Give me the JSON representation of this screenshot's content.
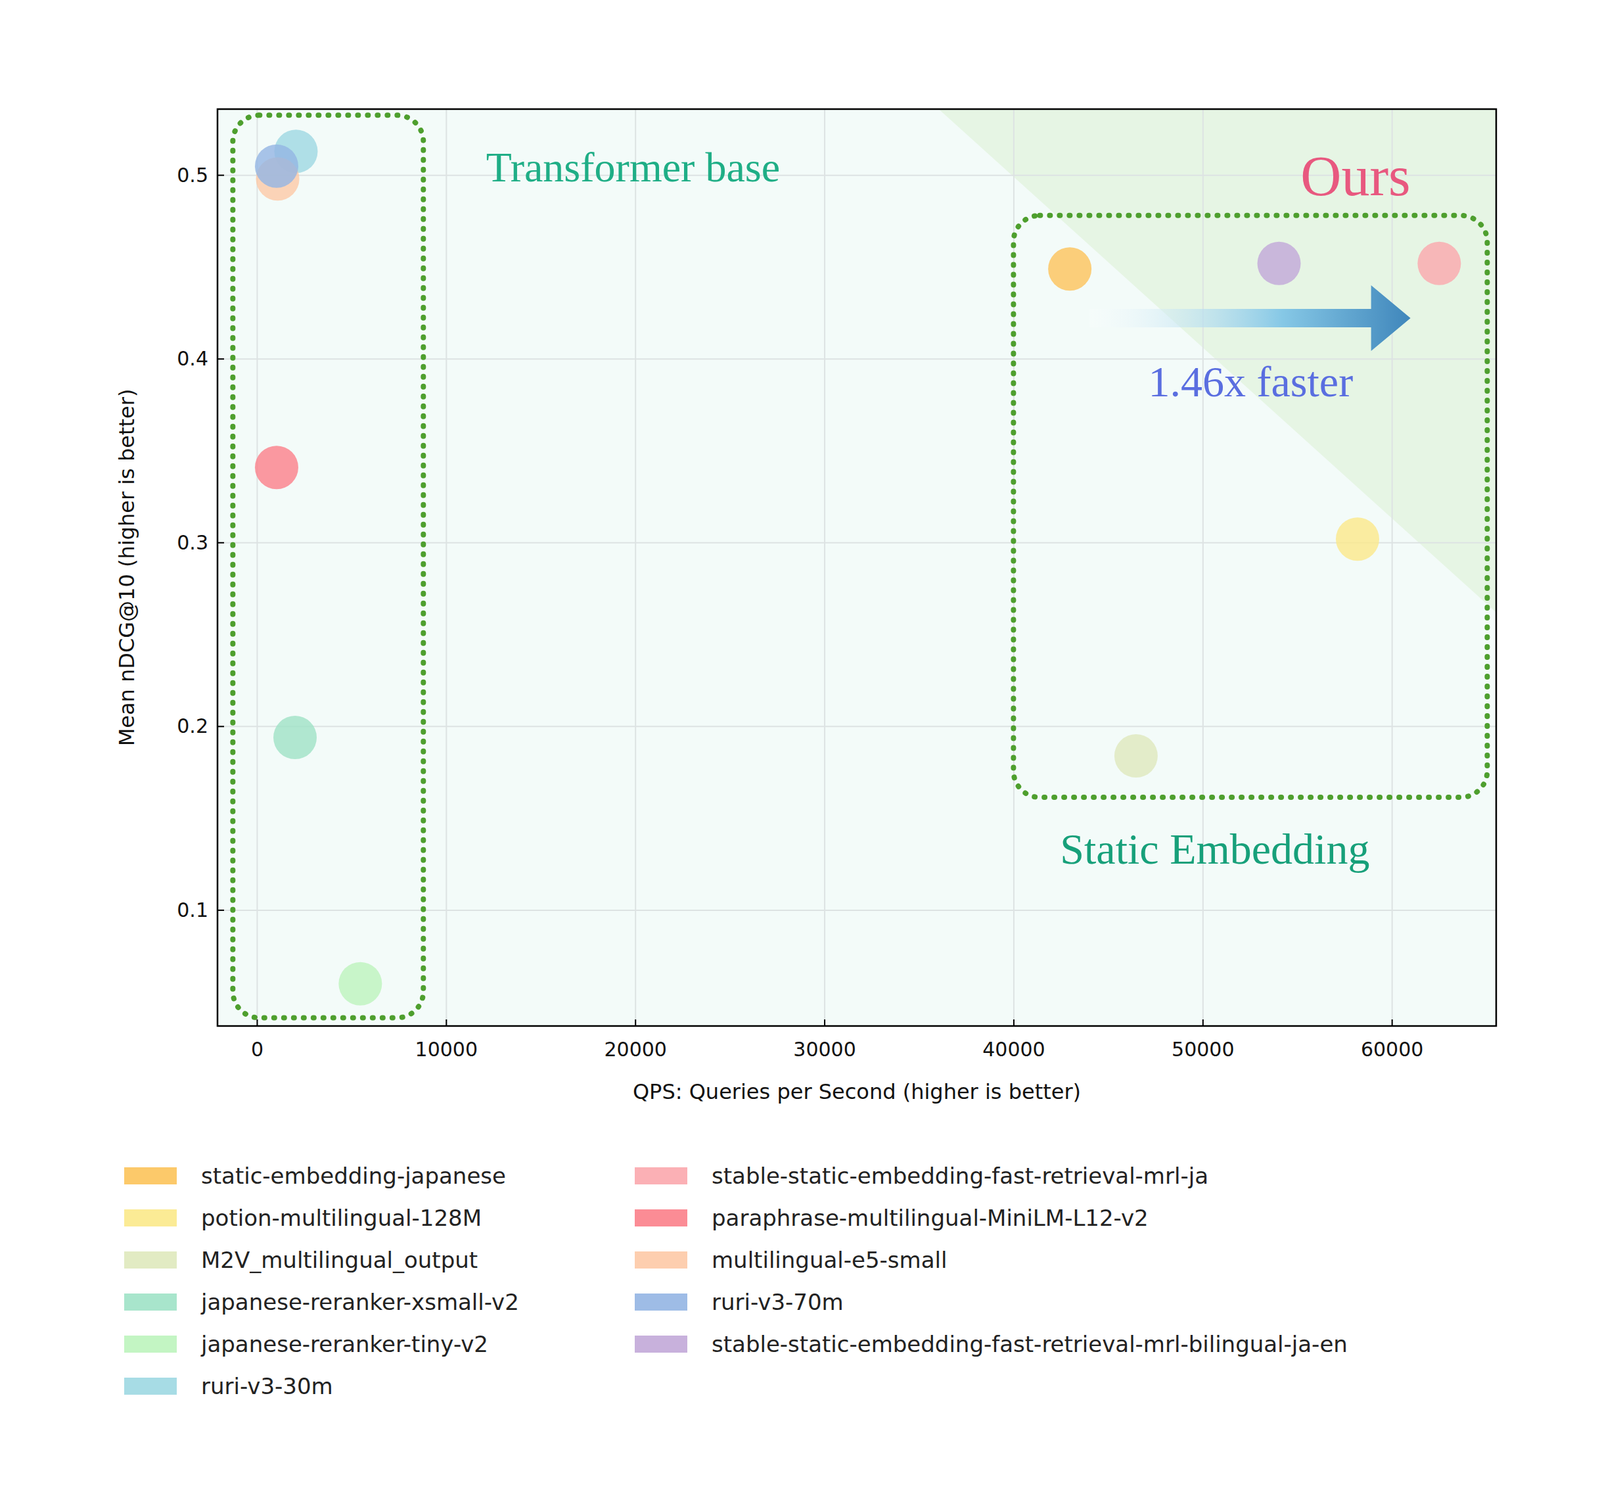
{
  "chart_data": {
    "type": "scatter",
    "x_label": "QPS: Queries per Second (higher is better)",
    "y_label": "Mean nDCG@10 (higher is better)",
    "xlim": [
      -2100,
      65500
    ],
    "ylim": [
      0.037,
      0.536
    ],
    "xticks": [
      0,
      10000,
      20000,
      30000,
      40000,
      50000,
      60000
    ],
    "yticks": [
      0.1,
      0.2,
      0.3,
      0.4,
      0.5
    ],
    "grid": true,
    "legend": "bottom",
    "marker": "circle",
    "series": [
      {
        "name": "static-embedding-japanese",
        "color": "#fcc35a",
        "x": [
          42960
        ],
        "values": [
          0.449
        ]
      },
      {
        "name": "potion-multilingual-128M",
        "color": "#fbe98a",
        "x": [
          58170
        ],
        "values": [
          0.302
        ]
      },
      {
        "name": "M2V_multilingual_output",
        "color": "#dfe9bd",
        "x": [
          46460
        ],
        "values": [
          0.184
        ]
      },
      {
        "name": "japanese-reranker-xsmall-v2",
        "color": "#9fe2c6",
        "x": [
          2000
        ],
        "values": [
          0.194
        ]
      },
      {
        "name": "japanese-reranker-tiny-v2",
        "color": "#bdf4bd",
        "x": [
          5450
        ],
        "values": [
          0.06
        ]
      },
      {
        "name": "ruri-v3-30m",
        "color": "#9dd8e2",
        "x": [
          2050
        ],
        "values": [
          0.513
        ]
      },
      {
        "name": "stable-static-embedding-fast-retrieval-mrl-ja",
        "color": "#fba7ad",
        "x": [
          62490
        ],
        "values": [
          0.452
        ]
      },
      {
        "name": "paraphrase-multilingual-MiniLM-L12-v2",
        "color": "#fb7f8a",
        "x": [
          1025
        ],
        "values": [
          0.341
        ]
      },
      {
        "name": "multilingual-e5-small",
        "color": "#fdc9a6",
        "x": [
          1080
        ],
        "values": [
          0.498
        ]
      },
      {
        "name": "ruri-v3-70m",
        "color": "#93b5e3",
        "x": [
          1025
        ],
        "values": [
          0.505
        ]
      },
      {
        "name": "stable-static-embedding-fast-retrieval-mrl-bilingual-ja-en",
        "color": "#c2a8d8",
        "x": [
          54020
        ],
        "values": [
          0.452
        ]
      }
    ],
    "annotations": [
      {
        "text": "Transformer base",
        "color": "#1fae86"
      },
      {
        "text": "Ours",
        "color": "#e8587f"
      },
      {
        "text": "1.46x faster",
        "color": "#5a6ee0"
      },
      {
        "text": "Static Embedding",
        "color": "#17a07a"
      }
    ]
  }
}
